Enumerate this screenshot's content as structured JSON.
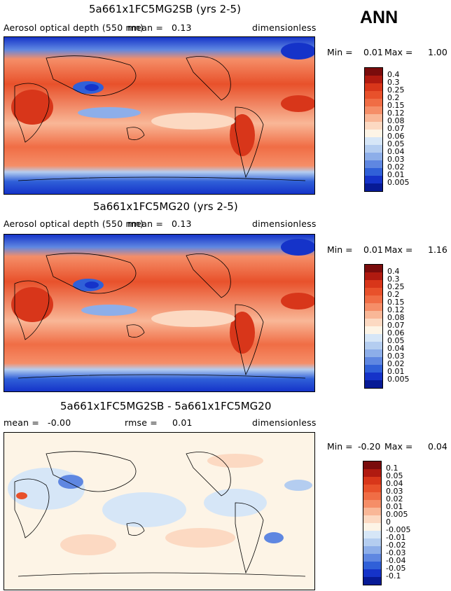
{
  "season": "ANN",
  "units": "dimensionless",
  "panel1": {
    "title": "5a661x1FC5MG2SB (yrs 2-5)",
    "subtitle": "Aerosol optical depth (550 nm)",
    "mean_label": "mean =",
    "mean_value": "0.13",
    "min_label": "Min =",
    "min_value": "0.01",
    "max_label": "Max =",
    "max_value": "1.00"
  },
  "panel2": {
    "title": "5a661x1FC5MG20 (yrs 2-5)",
    "subtitle": "Aerosol optical depth (550 nm)",
    "mean_label": "mean =",
    "mean_value": "0.13",
    "min_label": "Min =",
    "min_value": "0.01",
    "max_label": "Max =",
    "max_value": "1.16"
  },
  "panel3": {
    "title": "5a661x1FC5MG2SB - 5a661x1FC5MG20",
    "mean_label": "mean =",
    "mean_value": "-0.00",
    "rmse_label": "rmse =",
    "rmse_value": "0.01",
    "min_label": "Min =",
    "min_value": "-0.20",
    "max_label": "Max =",
    "max_value": "0.04"
  },
  "colorbar_abs": {
    "labels": [
      "0.4",
      "0.3",
      "0.25",
      "0.2",
      "0.15",
      "0.12",
      "0.08",
      "0.07",
      "0.06",
      "0.05",
      "0.04",
      "0.03",
      "0.02",
      "0.01",
      "0.005"
    ],
    "colors": [
      "#7a0c0c",
      "#b01a10",
      "#d8361a",
      "#e8512b",
      "#f06d45",
      "#f58e68",
      "#f9b797",
      "#fcd9c2",
      "#fdf4e6",
      "#d6e6f7",
      "#b4cdf0",
      "#8daee9",
      "#5f87e1",
      "#3060d8",
      "#1533c9",
      "#071a95"
    ]
  },
  "colorbar_diff": {
    "labels": [
      "0.1",
      "0.05",
      "0.04",
      "0.03",
      "0.02",
      "0.01",
      "0.005",
      "0",
      "-0.005",
      "-0.01",
      "-0.02",
      "-0.03",
      "-0.04",
      "-0.05",
      "-0.1"
    ],
    "colors": [
      "#7a0c0c",
      "#b01a10",
      "#d8361a",
      "#e8512b",
      "#f06d45",
      "#f58e68",
      "#f9b797",
      "#fcd9c2",
      "#fdf4e6",
      "#d6e6f7",
      "#b4cdf0",
      "#8daee9",
      "#5f87e1",
      "#3060d8",
      "#1533c9",
      "#071a95"
    ]
  }
}
